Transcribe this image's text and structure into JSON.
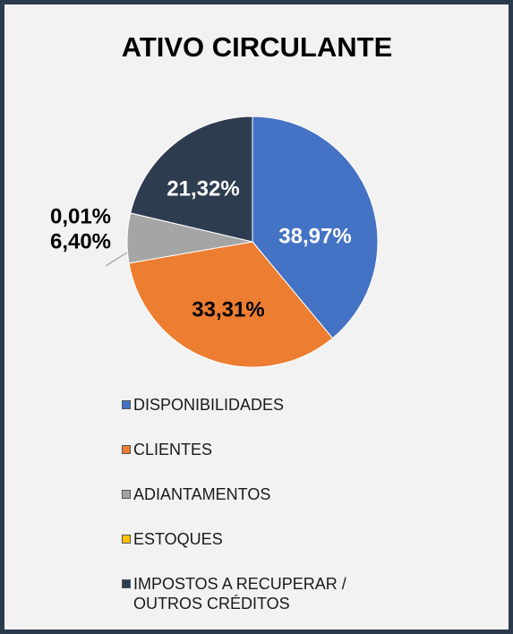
{
  "chart_data": {
    "type": "pie",
    "title": "ATIVO CIRCULANTE",
    "categories": [
      "DISPONIBILIDADES",
      "CLIENTES",
      "ADIANTAMENTOS",
      "ESTOQUES",
      "IMPOSTOS A RECUPERAR / OUTROS CRÉDITOS"
    ],
    "values": [
      38.97,
      33.31,
      6.4,
      0.01,
      21.32
    ],
    "value_labels": [
      "38,97%",
      "33,31%",
      "6,40%",
      "0,01%",
      "21,32%"
    ],
    "colors": [
      "#4472c4",
      "#ed7d31",
      "#a5a5a5",
      "#ffc000",
      "#2e3c50"
    ]
  }
}
